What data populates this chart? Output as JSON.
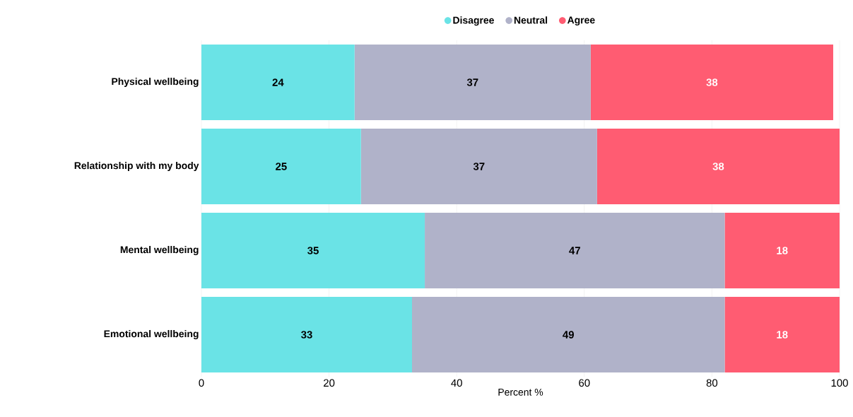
{
  "chart_data": {
    "type": "bar",
    "orientation": "horizontal",
    "stacked": true,
    "xlabel": "Percent %",
    "categories": [
      "Physical wellbeing",
      "Relationship with my body",
      "Mental wellbeing",
      "Emotional wellbeing"
    ],
    "series": [
      {
        "name": "Disagree",
        "color": "#6ae3e6",
        "values": [
          24,
          25,
          35,
          33
        ]
      },
      {
        "name": "Neutral",
        "color": "#b0b2c9",
        "values": [
          37,
          37,
          47,
          49
        ]
      },
      {
        "name": "Agree",
        "color": "#ff5c72",
        "values": [
          38,
          38,
          18,
          18
        ]
      }
    ],
    "xlim": [
      0,
      100
    ],
    "xticks": [
      0,
      20,
      40,
      60,
      80,
      100
    ],
    "grid": "x",
    "legend": "top",
    "data_labels": true
  }
}
